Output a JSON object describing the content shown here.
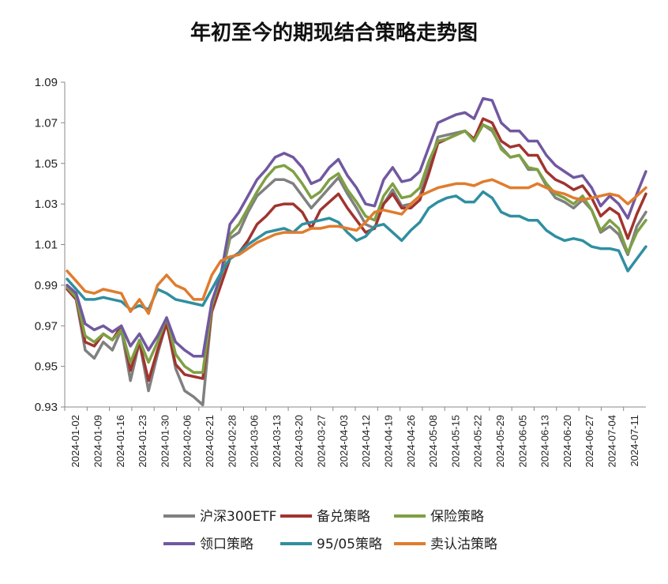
{
  "chart_data": {
    "type": "line",
    "title": "年初至今的期现结合策略走势图",
    "xlabel": "",
    "ylabel": "",
    "ylim": [
      0.93,
      1.09
    ],
    "yticks": [
      "0.93",
      "0.95",
      "0.97",
      "0.99",
      "1.01",
      "1.03",
      "1.05",
      "1.07",
      "1.09"
    ],
    "x_ticks": [
      "2024-01-02",
      "2024-01-09",
      "2024-01-16",
      "2024-01-23",
      "2024-01-30",
      "2024-02-06",
      "2024-02-21",
      "2024-02-28",
      "2024-03-06",
      "2024-03-13",
      "2024-03-20",
      "2024-03-27",
      "2024-04-03",
      "2024-04-12",
      "2024-04-19",
      "2024-04-26",
      "2024-05-08",
      "2024-05-15",
      "2024-05-22",
      "2024-05-29",
      "2024-06-05",
      "2024-06-13",
      "2024-06-20",
      "2024-06-27",
      "2024-07-04",
      "2024-07-11"
    ],
    "grid": false,
    "legend": "bottom",
    "series": [
      {
        "name": "沪深300ETF",
        "color": "#808080",
        "values": [
          0.989,
          0.983,
          0.958,
          0.954,
          0.962,
          0.958,
          0.968,
          0.943,
          0.962,
          0.938,
          0.956,
          0.972,
          0.949,
          0.938,
          0.935,
          0.931,
          0.978,
          0.993,
          1.013,
          1.016,
          1.026,
          1.034,
          1.038,
          1.042,
          1.042,
          1.04,
          1.034,
          1.028,
          1.033,
          1.038,
          1.043,
          1.035,
          1.028,
          1.02,
          1.018,
          1.03,
          1.037,
          1.029,
          1.03,
          1.034,
          1.047,
          1.063,
          1.064,
          1.065,
          1.066,
          1.062,
          1.069,
          1.066,
          1.058,
          1.053,
          1.054,
          1.047,
          1.047,
          1.039,
          1.033,
          1.031,
          1.028,
          1.032,
          1.027,
          1.016,
          1.019,
          1.015,
          1.005,
          1.019,
          1.026
        ]
      },
      {
        "name": "备兑策略",
        "color": "#A0342F",
        "values": [
          0.988,
          0.983,
          0.962,
          0.96,
          0.966,
          0.963,
          0.97,
          0.948,
          0.962,
          0.943,
          0.958,
          0.971,
          0.951,
          0.946,
          0.945,
          0.944,
          0.977,
          0.99,
          1.003,
          1.006,
          1.012,
          1.02,
          1.024,
          1.029,
          1.03,
          1.03,
          1.026,
          1.018,
          1.027,
          1.031,
          1.035,
          1.028,
          1.022,
          1.016,
          1.018,
          1.03,
          1.035,
          1.028,
          1.028,
          1.032,
          1.045,
          1.06,
          1.062,
          1.064,
          1.066,
          1.062,
          1.072,
          1.07,
          1.061,
          1.058,
          1.059,
          1.054,
          1.054,
          1.046,
          1.042,
          1.04,
          1.037,
          1.039,
          1.033,
          1.024,
          1.028,
          1.025,
          1.013,
          1.025,
          1.035
        ]
      },
      {
        "name": "保险策略",
        "color": "#7EA044",
        "values": [
          0.989,
          0.984,
          0.965,
          0.962,
          0.966,
          0.963,
          0.968,
          0.952,
          0.963,
          0.952,
          0.962,
          0.974,
          0.956,
          0.95,
          0.947,
          0.947,
          0.98,
          0.994,
          1.015,
          1.02,
          1.028,
          1.036,
          1.043,
          1.048,
          1.049,
          1.046,
          1.04,
          1.033,
          1.036,
          1.042,
          1.045,
          1.037,
          1.031,
          1.024,
          1.022,
          1.034,
          1.04,
          1.033,
          1.034,
          1.038,
          1.051,
          1.061,
          1.062,
          1.064,
          1.066,
          1.061,
          1.069,
          1.067,
          1.057,
          1.053,
          1.054,
          1.048,
          1.047,
          1.04,
          1.035,
          1.033,
          1.03,
          1.034,
          1.027,
          1.017,
          1.022,
          1.018,
          1.006,
          1.016,
          1.022
        ]
      },
      {
        "name": "领口策略",
        "color": "#7158A0",
        "values": [
          0.99,
          0.986,
          0.971,
          0.968,
          0.97,
          0.967,
          0.97,
          0.96,
          0.966,
          0.958,
          0.965,
          0.974,
          0.962,
          0.958,
          0.955,
          0.955,
          0.982,
          0.995,
          1.02,
          1.026,
          1.034,
          1.042,
          1.047,
          1.053,
          1.055,
          1.053,
          1.048,
          1.04,
          1.042,
          1.048,
          1.052,
          1.044,
          1.038,
          1.03,
          1.029,
          1.042,
          1.048,
          1.041,
          1.042,
          1.046,
          1.058,
          1.07,
          1.072,
          1.074,
          1.075,
          1.072,
          1.082,
          1.081,
          1.07,
          1.066,
          1.066,
          1.061,
          1.061,
          1.054,
          1.049,
          1.046,
          1.043,
          1.044,
          1.038,
          1.029,
          1.034,
          1.03,
          1.023,
          1.035,
          1.046
        ]
      },
      {
        "name": "95/05策略",
        "color": "#2F8FA0",
        "values": [
          0.993,
          0.988,
          0.983,
          0.983,
          0.984,
          0.983,
          0.982,
          0.978,
          0.98,
          0.978,
          0.988,
          0.986,
          0.983,
          0.982,
          0.981,
          0.98,
          0.988,
          0.996,
          1.003,
          1.006,
          1.01,
          1.013,
          1.016,
          1.017,
          1.018,
          1.016,
          1.02,
          1.021,
          1.022,
          1.023,
          1.021,
          1.016,
          1.012,
          1.014,
          1.019,
          1.02,
          1.016,
          1.012,
          1.017,
          1.021,
          1.028,
          1.031,
          1.033,
          1.034,
          1.031,
          1.031,
          1.036,
          1.033,
          1.026,
          1.024,
          1.024,
          1.022,
          1.022,
          1.017,
          1.014,
          1.012,
          1.013,
          1.012,
          1.009,
          1.008,
          1.008,
          1.007,
          0.997,
          1.003,
          1.009
        ]
      },
      {
        "name": "卖认沽策略",
        "color": "#E07C2E",
        "values": [
          0.997,
          0.992,
          0.987,
          0.986,
          0.988,
          0.987,
          0.986,
          0.977,
          0.983,
          0.976,
          0.99,
          0.995,
          0.99,
          0.988,
          0.983,
          0.983,
          0.995,
          1.002,
          1.004,
          1.005,
          1.008,
          1.011,
          1.013,
          1.015,
          1.016,
          1.016,
          1.016,
          1.018,
          1.018,
          1.019,
          1.019,
          1.018,
          1.017,
          1.021,
          1.026,
          1.027,
          1.026,
          1.025,
          1.03,
          1.034,
          1.036,
          1.038,
          1.039,
          1.04,
          1.04,
          1.039,
          1.041,
          1.042,
          1.04,
          1.038,
          1.038,
          1.038,
          1.04,
          1.038,
          1.036,
          1.035,
          1.033,
          1.032,
          1.033,
          1.034,
          1.035,
          1.034,
          1.03,
          1.034,
          1.038
        ]
      }
    ]
  }
}
